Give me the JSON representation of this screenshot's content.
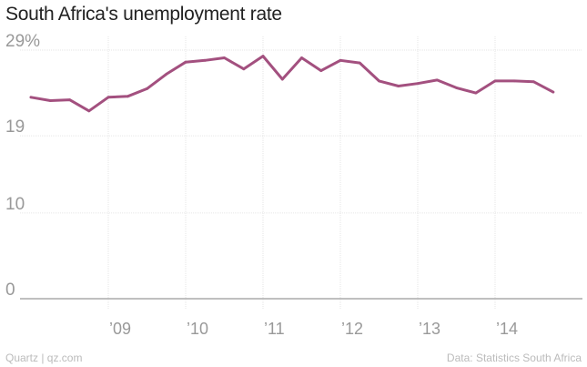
{
  "chart_data": {
    "type": "line",
    "title": "South Africa's unemployment rate",
    "xlabel": "",
    "ylabel": "",
    "ylim": [
      0,
      29
    ],
    "yticks": [
      {
        "value": 29,
        "label": "29%"
      },
      {
        "value": 19,
        "label": "19"
      },
      {
        "value": 10,
        "label": "10"
      },
      {
        "value": 0,
        "label": "0"
      }
    ],
    "xlim": [
      2008.0,
      2014.75
    ],
    "xticks": [
      {
        "value": 2009,
        "label": "’09"
      },
      {
        "value": 2010,
        "label": "’10"
      },
      {
        "value": 2011,
        "label": "’11"
      },
      {
        "value": 2012,
        "label": "’12"
      },
      {
        "value": 2013,
        "label": "’13"
      },
      {
        "value": 2014,
        "label": "’14"
      }
    ],
    "grid": true,
    "series": [
      {
        "color": "#a3507f",
        "points": [
          {
            "x": "2008 Q1",
            "y": 23.5
          },
          {
            "x": "2008 Q2",
            "y": 23.1
          },
          {
            "x": "2008 Q3",
            "y": 23.2
          },
          {
            "x": "2008 Q4",
            "y": 21.9
          },
          {
            "x": "2009 Q1",
            "y": 23.5
          },
          {
            "x": "2009 Q2",
            "y": 23.6
          },
          {
            "x": "2009 Q3",
            "y": 24.5
          },
          {
            "x": "2009 Q4",
            "y": 26.2
          },
          {
            "x": "2010 Q1",
            "y": 27.6
          },
          {
            "x": "2010 Q2",
            "y": 27.8
          },
          {
            "x": "2010 Q3",
            "y": 28.1
          },
          {
            "x": "2010 Q4",
            "y": 26.8
          },
          {
            "x": "2011 Q1",
            "y": 28.3
          },
          {
            "x": "2011 Q2",
            "y": 25.6
          },
          {
            "x": "2011 Q3",
            "y": 28.1
          },
          {
            "x": "2011 Q4",
            "y": 26.6
          },
          {
            "x": "2012 Q1",
            "y": 27.8
          },
          {
            "x": "2012 Q2",
            "y": 27.5
          },
          {
            "x": "2012 Q3",
            "y": 25.4
          },
          {
            "x": "2012 Q4",
            "y": 24.8
          },
          {
            "x": "2013 Q1",
            "y": 25.1
          },
          {
            "x": "2013 Q2",
            "y": 25.5
          },
          {
            "x": "2013 Q3",
            "y": 24.6
          },
          {
            "x": "2013 Q4",
            "y": 24.0
          },
          {
            "x": "2014 Q1",
            "y": 25.4
          },
          {
            "x": "2014 Q2",
            "y": 25.4
          },
          {
            "x": "2014 Q3",
            "y": 25.3
          },
          {
            "x": "2014 Q4",
            "y": 24.1
          }
        ]
      }
    ]
  },
  "footer": {
    "source_left": "Quartz | qz.com",
    "source_right": "Data: Statistics South Africa"
  }
}
